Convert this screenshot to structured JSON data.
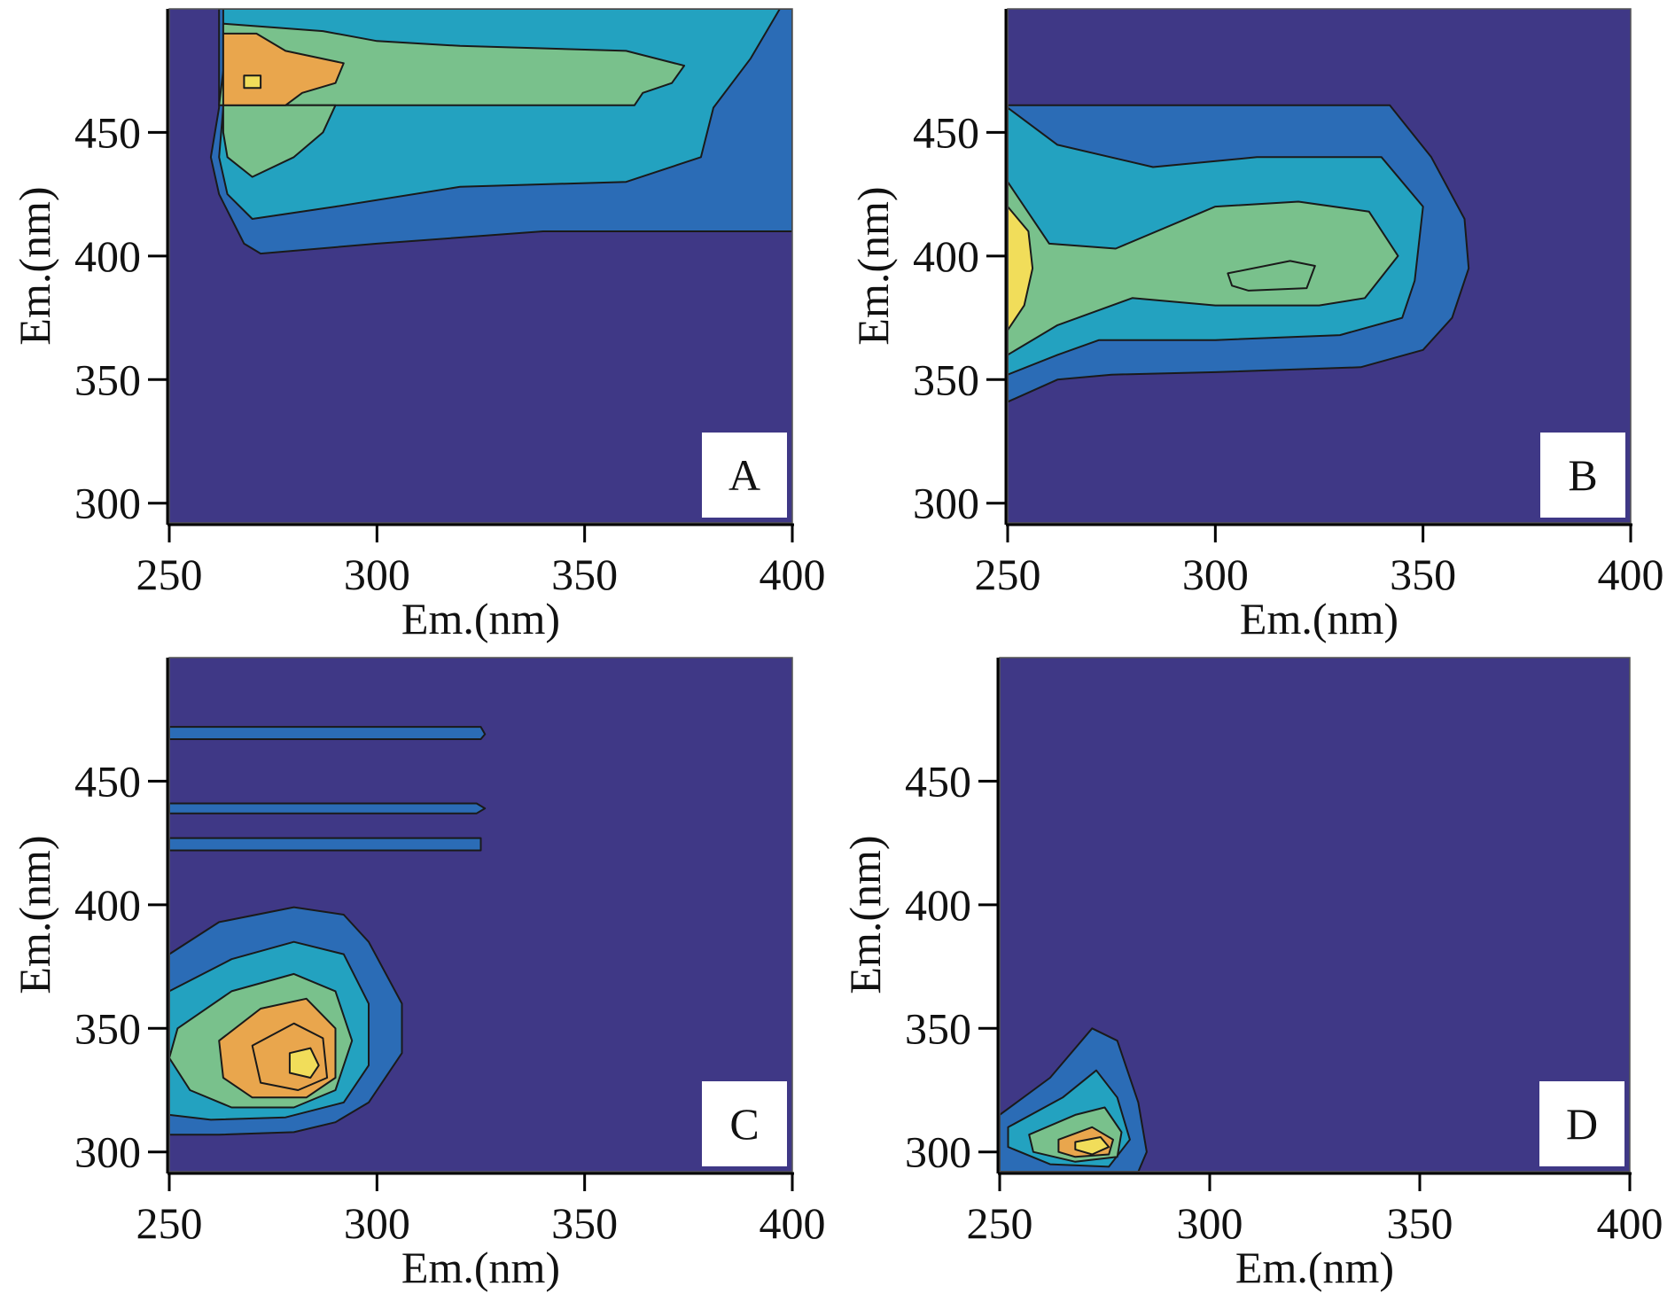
{
  "colors": {
    "background_level": "#3f3886",
    "levels": [
      "#3f3886",
      "#2b6cb6",
      "#23a2c0",
      "#79c18c",
      "#e9a64d",
      "#f1dd5a"
    ],
    "contour_line": "#1a1a1a"
  },
  "chart_data": [
    {
      "panel": "A",
      "type": "heatmap",
      "xlabel": "Em.(nm)",
      "ylabel": "Em.(nm)",
      "xlim": [
        250,
        400
      ],
      "ylim": [
        292,
        500
      ],
      "xticks": [
        250,
        300,
        350,
        400
      ],
      "yticks": [
        300,
        350,
        400,
        450
      ],
      "regions": [
        {
          "level": 1,
          "points": [
            [
              262,
              500
            ],
            [
              262,
              460
            ],
            [
              260,
              440
            ],
            [
              262,
              425
            ],
            [
              268,
              405
            ],
            [
              272,
              401
            ],
            [
              300,
              405
            ],
            [
              340,
              410
            ],
            [
              400,
              410
            ],
            [
              400,
              500
            ]
          ]
        },
        {
          "level": 2,
          "points": [
            [
              263,
              500
            ],
            [
              263,
              460
            ],
            [
              262,
              440
            ],
            [
              264,
              425
            ],
            [
              270,
              415
            ],
            [
              290,
              420
            ],
            [
              320,
              428
            ],
            [
              360,
              430
            ],
            [
              378,
              440
            ],
            [
              381,
              460
            ],
            [
              390,
              480
            ],
            [
              397,
              500
            ]
          ]
        },
        {
          "level": 3,
          "points": [
            [
              263,
              494
            ],
            [
              287,
              491
            ],
            [
              300,
              487
            ],
            [
              320,
              485
            ],
            [
              360,
              483
            ],
            [
              374,
              477
            ],
            [
              371,
              470
            ],
            [
              364,
              466
            ],
            [
              362,
              461
            ],
            [
              262,
              461
            ],
            [
              263,
              475
            ]
          ]
        },
        {
          "level": 3,
          "points": [
            [
              263,
              461
            ],
            [
              263,
              450
            ],
            [
              264,
              440
            ],
            [
              270,
              432
            ],
            [
              280,
              440
            ],
            [
              287,
              450
            ],
            [
              290,
              461
            ]
          ]
        },
        {
          "level": 4,
          "points": [
            [
              263,
              490
            ],
            [
              271,
              490
            ],
            [
              278,
              483
            ],
            [
              292,
              478
            ],
            [
              290,
              470
            ],
            [
              282,
              466
            ],
            [
              278,
              461
            ],
            [
              263,
              461
            ]
          ]
        },
        {
          "level": 5,
          "points": [
            [
              268,
              473
            ],
            [
              272,
              473
            ],
            [
              272,
              468
            ],
            [
              268,
              468
            ]
          ]
        }
      ]
    },
    {
      "panel": "B",
      "type": "heatmap",
      "xlabel": "Em.(nm)",
      "ylabel": "Em.(nm)",
      "xlim": [
        250,
        400
      ],
      "ylim": [
        292,
        500
      ],
      "xticks": [
        250,
        300,
        350,
        400
      ],
      "yticks": [
        300,
        350,
        400,
        450
      ],
      "regions": [
        {
          "level": 1,
          "points": [
            [
              250,
              461
            ],
            [
              342,
              461
            ],
            [
              352,
              440
            ],
            [
              360,
              415
            ],
            [
              361,
              395
            ],
            [
              357,
              375
            ],
            [
              350,
              362
            ],
            [
              335,
              355
            ],
            [
              300,
              353
            ],
            [
              275,
              352
            ],
            [
              262,
              350
            ],
            [
              250,
              341
            ]
          ]
        },
        {
          "level": 2,
          "points": [
            [
              250,
              460
            ],
            [
              262,
              445
            ],
            [
              285,
              436
            ],
            [
              310,
              440
            ],
            [
              340,
              440
            ],
            [
              350,
              420
            ],
            [
              348,
              390
            ],
            [
              345,
              375
            ],
            [
              330,
              368
            ],
            [
              300,
              366
            ],
            [
              272,
              366
            ],
            [
              262,
              360
            ],
            [
              250,
              352
            ]
          ]
        },
        {
          "level": 3,
          "points": [
            [
              250,
              430
            ],
            [
              260,
              405
            ],
            [
              276,
              403
            ],
            [
              300,
              420
            ],
            [
              320,
              422
            ],
            [
              337,
              418
            ],
            [
              344,
              400
            ],
            [
              336,
              383
            ],
            [
              325,
              380
            ],
            [
              300,
              380
            ],
            [
              280,
              383
            ],
            [
              262,
              372
            ],
            [
              250,
              360
            ]
          ]
        },
        {
          "level": 3,
          "points": [
            [
              303,
              393
            ],
            [
              318,
              398
            ],
            [
              324,
              396
            ],
            [
              322,
              387
            ],
            [
              308,
              386
            ],
            [
              304,
              388
            ]
          ]
        },
        {
          "level": 5,
          "points": [
            [
              250,
              420
            ],
            [
              255,
              410
            ],
            [
              256,
              395
            ],
            [
              254,
              380
            ],
            [
              250,
              370
            ]
          ]
        }
      ]
    },
    {
      "panel": "C",
      "type": "heatmap",
      "xlabel": "Em.(nm)",
      "ylabel": "Em.(nm)",
      "xlim": [
        250,
        400
      ],
      "ylim": [
        292,
        500
      ],
      "xticks": [
        250,
        300,
        350,
        400
      ],
      "yticks": [
        300,
        350,
        400,
        450
      ],
      "regions": [
        {
          "level": 1,
          "points": [
            [
              250,
              380
            ],
            [
              262,
              393
            ],
            [
              280,
              399
            ],
            [
              292,
              396
            ],
            [
              298,
              385
            ],
            [
              306,
              360
            ],
            [
              306,
              340
            ],
            [
              298,
              320
            ],
            [
              290,
              312
            ],
            [
              280,
              308
            ],
            [
              262,
              307
            ],
            [
              250,
              307
            ]
          ]
        },
        {
          "level": 1,
          "points": [
            [
              250,
              472
            ],
            [
              325,
              472
            ],
            [
              326,
              469
            ],
            [
              325,
              467
            ],
            [
              250,
              467
            ]
          ]
        },
        {
          "level": 1,
          "points": [
            [
              250,
              441
            ],
            [
              324,
              441
            ],
            [
              326,
              439
            ],
            [
              324,
              437
            ],
            [
              250,
              437
            ]
          ]
        },
        {
          "level": 1,
          "points": [
            [
              250,
              427
            ],
            [
              325,
              427
            ],
            [
              325,
              422
            ],
            [
              250,
              422
            ]
          ]
        },
        {
          "level": 2,
          "points": [
            [
              250,
              365
            ],
            [
              265,
              378
            ],
            [
              280,
              385
            ],
            [
              292,
              380
            ],
            [
              298,
              360
            ],
            [
              298,
              335
            ],
            [
              292,
              320
            ],
            [
              278,
              314
            ],
            [
              260,
              313
            ],
            [
              250,
              315
            ]
          ]
        },
        {
          "level": 3,
          "points": [
            [
              252,
              350
            ],
            [
              265,
              365
            ],
            [
              280,
              372
            ],
            [
              290,
              365
            ],
            [
              294,
              345
            ],
            [
              290,
              325
            ],
            [
              280,
              318
            ],
            [
              265,
              318
            ],
            [
              255,
              325
            ],
            [
              250,
              338
            ]
          ]
        },
        {
          "level": 4,
          "points": [
            [
              262,
              345
            ],
            [
              272,
              358
            ],
            [
              283,
              362
            ],
            [
              290,
              350
            ],
            [
              290,
              330
            ],
            [
              283,
              322
            ],
            [
              270,
              322
            ],
            [
              263,
              330
            ]
          ]
        },
        {
          "level": 4,
          "points": [
            [
              270,
              343
            ],
            [
              280,
              352
            ],
            [
              287,
              346
            ],
            [
              288,
              330
            ],
            [
              281,
              325
            ],
            [
              272,
              328
            ]
          ]
        },
        {
          "level": 5,
          "points": [
            [
              279,
              340
            ],
            [
              284,
              342
            ],
            [
              286,
              335
            ],
            [
              284,
              330
            ],
            [
              279,
              332
            ]
          ]
        }
      ]
    },
    {
      "panel": "D",
      "type": "heatmap",
      "xlabel": "Em.(nm)",
      "ylabel": "Em.(nm)",
      "xlim": [
        250,
        400
      ],
      "ylim": [
        292,
        500
      ],
      "xticks": [
        250,
        300,
        350,
        400
      ],
      "yticks": [
        300,
        350,
        400,
        450
      ],
      "regions": [
        {
          "level": 1,
          "points": [
            [
              250,
              315
            ],
            [
              262,
              330
            ],
            [
              272,
              350
            ],
            [
              278,
              345
            ],
            [
              283,
              320
            ],
            [
              285,
              300
            ],
            [
              283,
              292
            ],
            [
              250,
              292
            ]
          ]
        },
        {
          "level": 2,
          "points": [
            [
              252,
              310
            ],
            [
              265,
              322
            ],
            [
              273,
              333
            ],
            [
              278,
              322
            ],
            [
              281,
              305
            ],
            [
              276,
              294
            ],
            [
              262,
              295
            ],
            [
              252,
              302
            ]
          ]
        },
        {
          "level": 3,
          "points": [
            [
              257,
              307
            ],
            [
              268,
              315
            ],
            [
              275,
              318
            ],
            [
              279,
              308
            ],
            [
              278,
              298
            ],
            [
              268,
              296
            ],
            [
              258,
              300
            ]
          ]
        },
        {
          "level": 4,
          "points": [
            [
              264,
              305
            ],
            [
              272,
              310
            ],
            [
              277,
              305
            ],
            [
              276,
              299
            ],
            [
              268,
              298
            ],
            [
              264,
              300
            ]
          ]
        },
        {
          "level": 5,
          "points": [
            [
              268,
              304
            ],
            [
              274,
              306
            ],
            [
              276,
              302
            ],
            [
              272,
              299
            ],
            [
              268,
              301
            ]
          ]
        }
      ]
    }
  ]
}
